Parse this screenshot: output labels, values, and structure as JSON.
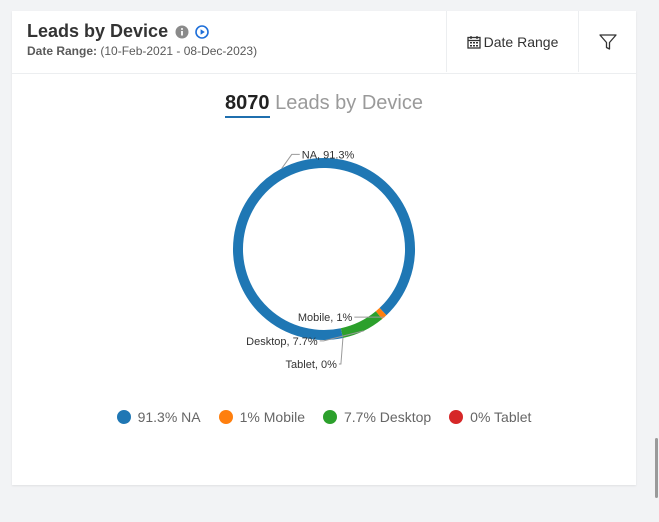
{
  "header": {
    "title": "Leads by Device",
    "date_range_label": "Date Range:",
    "date_range_value": " (10-Feb-2021 - 08-Dec-2023)",
    "date_button_label": "Date Range"
  },
  "chart_heading": {
    "count": "8070",
    "label": " Leads by Device"
  },
  "colors": {
    "NA": "#1f77b4",
    "Mobile": "#ff7f0e",
    "Desktop": "#2ca02c",
    "Tablet": "#d62728"
  },
  "chart_data": {
    "type": "pie",
    "categories": [
      "NA",
      "Mobile",
      "Desktop",
      "Tablet"
    ],
    "values": [
      91.3,
      1,
      7.7,
      0
    ],
    "slice_labels": [
      "NA, 91.3%",
      "Mobile, 1%",
      "Desktop, 7.7%",
      "Tablet, 0%"
    ],
    "legend": [
      "91.3% NA",
      "1% Mobile",
      "7.7% Desktop",
      "0% Tablet"
    ],
    "legend_placement": "bottom"
  }
}
